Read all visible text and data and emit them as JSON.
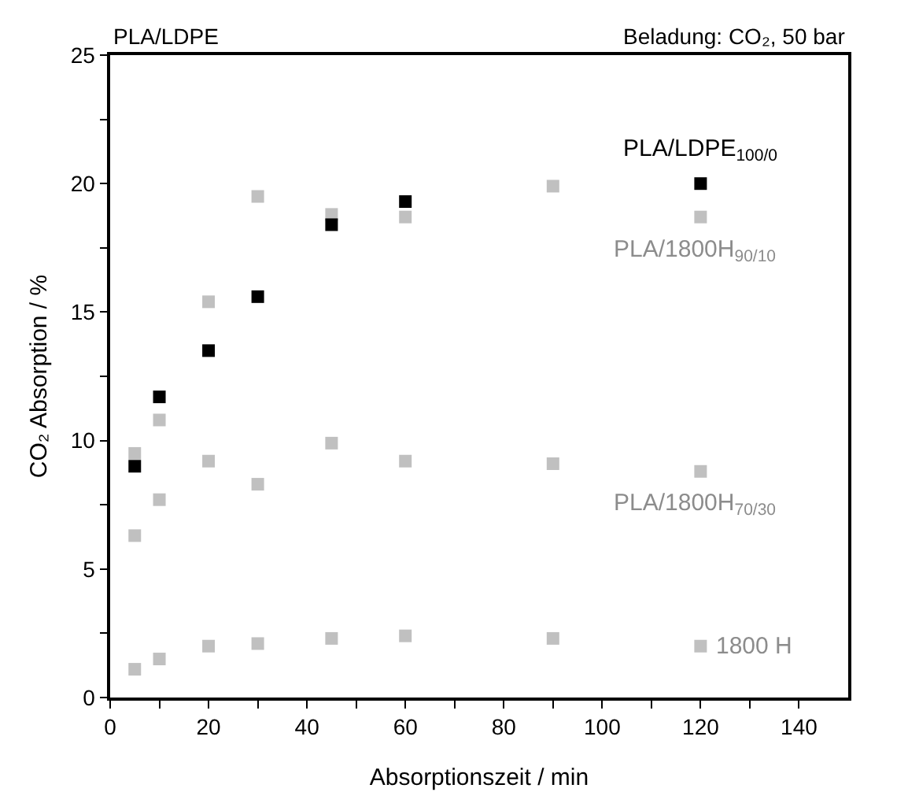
{
  "chart_data": {
    "type": "scatter",
    "title": "PLA/LDPE",
    "subtitle": "Beladung: CO₂, 50 bar",
    "xlabel": "Absorptionszeit / min",
    "ylabel": "CO₂ Absorption / %",
    "marker": "square",
    "legend": false,
    "grid": false,
    "xlim": [
      0,
      150
    ],
    "ylim": [
      0,
      25
    ],
    "xticks": [
      0,
      {
        "value": 10,
        "label": null
      },
      20,
      {
        "value": 30,
        "label": null
      },
      40,
      {
        "value": 50,
        "label": null
      },
      60,
      {
        "value": 70,
        "label": null
      },
      80,
      {
        "value": 90,
        "label": null
      },
      100,
      {
        "value": 110,
        "label": null
      },
      120,
      {
        "value": 130,
        "label": null
      },
      140
    ],
    "yticks": [
      0,
      {
        "value": 2.5,
        "label": null
      },
      5,
      {
        "value": 7.5,
        "label": null
      },
      10,
      {
        "value": 12.5,
        "label": null
      },
      15,
      {
        "value": 17.5,
        "label": null
      },
      20,
      {
        "value": 22.5,
        "label": null
      },
      25
    ],
    "series": [
      {
        "name": "PLA/1800H$_{90/10}$",
        "color": "#c0c0c0",
        "x": [
          5,
          10,
          20,
          30,
          45,
          60,
          90,
          120
        ],
        "values": [
          9.5,
          10.8,
          15.4,
          19.5,
          18.8,
          18.7,
          19.9,
          18.7
        ]
      },
      {
        "name": "PLA/1800H$_{70/30}$",
        "color": "#c0c0c0",
        "x": [
          5,
          10,
          20,
          30,
          45,
          60,
          90,
          120
        ],
        "values": [
          6.3,
          7.7,
          9.2,
          8.3,
          9.9,
          9.2,
          9.1,
          8.8
        ]
      },
      {
        "name": "1800 H",
        "color": "#c0c0c0",
        "x": [
          5,
          10,
          20,
          30,
          45,
          60,
          90,
          120
        ],
        "values": [
          1.1,
          1.5,
          2.0,
          2.1,
          2.3,
          2.4,
          2.3,
          2.0
        ]
      },
      {
        "name": "PLA/LDPE$_{100/0}$",
        "color": "#000000",
        "x": [
          5,
          10,
          20,
          30,
          45,
          60,
          120
        ],
        "values": [
          9.0,
          11.7,
          13.5,
          15.6,
          18.4,
          19.3,
          20.0
        ]
      }
    ]
  }
}
